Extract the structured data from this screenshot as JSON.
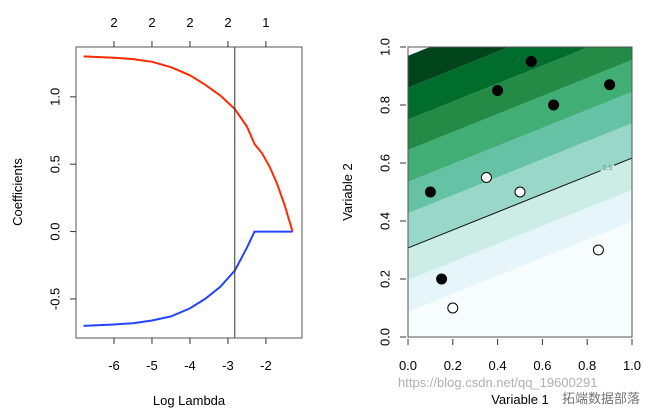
{
  "chart_data": [
    {
      "type": "line",
      "xlabel": "Log Lambda",
      "ylabel": "Coefficients",
      "xlim": [
        -7.0,
        -1.05
      ],
      "ylim": [
        -0.79,
        1.37
      ],
      "xticks": [
        -6,
        -5,
        -4,
        -3,
        -2
      ],
      "xtick_labels": [
        "-6",
        "-5",
        "-4",
        "-3",
        "-2"
      ],
      "yticks": [
        -0.5,
        0.0,
        0.5,
        1.0
      ],
      "ytick_labels": [
        "-0.5",
        "0.0",
        "0.5",
        "1.0"
      ],
      "top_axis_ticks": [
        -6,
        -5,
        -4,
        -3,
        -2
      ],
      "top_axis_labels": [
        "2",
        "2",
        "2",
        "2",
        "1"
      ],
      "vline": -2.82,
      "series": [
        {
          "color": "#ff2a00",
          "x": [
            -6.8,
            -6.0,
            -5.5,
            -5.0,
            -4.5,
            -4.0,
            -3.6,
            -3.2,
            -2.82,
            -2.5,
            -2.3,
            -2.1,
            -1.9,
            -1.7,
            -1.5,
            -1.3
          ],
          "y": [
            1.3,
            1.29,
            1.28,
            1.26,
            1.22,
            1.16,
            1.09,
            1.01,
            0.91,
            0.78,
            0.65,
            0.58,
            0.48,
            0.35,
            0.19,
            0.0
          ]
        },
        {
          "color": "#2244ff",
          "x": [
            -6.8,
            -6.0,
            -5.5,
            -5.0,
            -4.5,
            -4.0,
            -3.6,
            -3.2,
            -2.82,
            -2.5,
            -2.3,
            -1.3
          ],
          "y": [
            -0.7,
            -0.69,
            -0.68,
            -0.66,
            -0.63,
            -0.57,
            -0.5,
            -0.41,
            -0.29,
            -0.12,
            0.0,
            0.0
          ]
        }
      ]
    },
    {
      "type": "scatter",
      "xlabel": "Variable 1",
      "ylabel": "Variable 2",
      "xlim": [
        0,
        1
      ],
      "ylim": [
        0,
        1
      ],
      "xticks": [
        0.0,
        0.2,
        0.4,
        0.6,
        0.8,
        1.0
      ],
      "xtick_labels": [
        "0.0",
        "0.2",
        "0.4",
        "0.6",
        "0.8",
        "1.0"
      ],
      "yticks": [
        0.0,
        0.2,
        0.4,
        0.6,
        0.8,
        1.0
      ],
      "ytick_labels": [
        "0.0",
        "0.2",
        "0.4",
        "0.6",
        "0.8",
        "1.0"
      ],
      "contour_label": "0.5",
      "decision_boundary": {
        "intercept": 0.307,
        "slope": 0.31
      },
      "bands": {
        "intercepts": [
          -0.023,
          0.087,
          0.197,
          0.307,
          0.427,
          0.535,
          0.645,
          0.75,
          0.86
        ],
        "colors": [
          "#f7fcfd",
          "#e5f5f9",
          "#ccece6",
          "#99d8c9",
          "#66c2a4",
          "#41ae76",
          "#238b45",
          "#006d2c",
          "#00441b"
        ]
      },
      "series": [
        {
          "fill": "#000000",
          "points": [
            [
              0.55,
              0.95
            ],
            [
              0.4,
              0.85
            ],
            [
              0.9,
              0.87
            ],
            [
              0.65,
              0.8
            ],
            [
              0.1,
              0.5
            ],
            [
              0.15,
              0.2
            ]
          ]
        },
        {
          "fill": "#ffffff",
          "points": [
            [
              0.35,
              0.55
            ],
            [
              0.5,
              0.5
            ],
            [
              0.85,
              0.3
            ],
            [
              0.2,
              0.1
            ]
          ]
        }
      ]
    }
  ],
  "watermark": {
    "brand": "拓端数据部落",
    "url": "https://blog.csdn.net/qq_19600291"
  }
}
